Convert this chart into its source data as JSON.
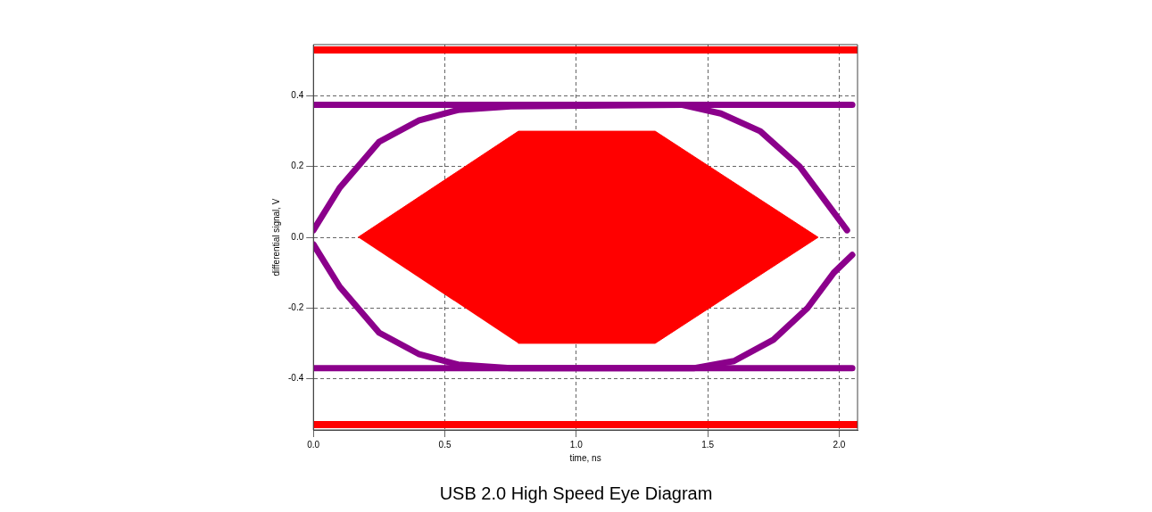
{
  "chart_data": {
    "type": "line",
    "title": "USB 2.0 High Speed Eye Diagram",
    "xlabel": "time, ns",
    "ylabel": "differential signal, V",
    "xlim": [
      0,
      2.07
    ],
    "ylim": [
      -0.545,
      0.545
    ],
    "xticks": [
      {
        "value": 0,
        "label": "0.0"
      },
      {
        "value": 0.5,
        "label": "0.5"
      },
      {
        "value": 1,
        "label": "1.0"
      },
      {
        "value": 1.5,
        "label": "1.5"
      },
      {
        "value": 2,
        "label": "2.0"
      }
    ],
    "yticks": [
      {
        "value": -0.4,
        "label": "-0.4"
      },
      {
        "value": -0.2,
        "label": "-0.2"
      },
      {
        "value": 0,
        "label": "0.0"
      },
      {
        "value": 0.2,
        "label": "0.2"
      },
      {
        "value": 0.4,
        "label": "0.4"
      }
    ],
    "grid": true,
    "line_style": "solid",
    "marker": "none",
    "legend": false,
    "bands": [
      {
        "axis": "y",
        "from": 0.52,
        "to": 0.54,
        "color": "#ff0000"
      },
      {
        "axis": "y",
        "from": -0.54,
        "to": -0.52,
        "color": "#ff0000"
      }
    ],
    "series": [
      {
        "type": "area",
        "color": "#ff0000",
        "x": [
          0.17,
          0.78,
          1.3,
          1.92,
          1.3,
          0.78
        ],
        "values": [
          0,
          0.3,
          0.3,
          0,
          -0.3,
          -0.3
        ]
      },
      {
        "color": "#8b008b",
        "x": [
          0,
          2.05
        ],
        "values": [
          0.375,
          0.375
        ]
      },
      {
        "color": "#8b008b",
        "x": [
          0,
          2.05
        ],
        "values": [
          -0.37,
          -0.37
        ]
      },
      {
        "color": "#8b008b",
        "x": [
          0,
          0.1,
          0.25,
          0.4,
          0.55,
          0.75,
          1.4,
          1.55,
          1.7,
          1.85,
          1.95,
          2.03
        ],
        "values": [
          0.02,
          0.14,
          0.27,
          0.33,
          0.36,
          0.37,
          0.375,
          0.35,
          0.3,
          0.2,
          0.1,
          0.02
        ]
      },
      {
        "color": "#8b008b",
        "x": [
          0,
          0.1,
          0.25,
          0.4,
          0.55,
          0.75,
          1.45,
          1.6,
          1.75,
          1.88,
          1.98,
          2.05
        ],
        "values": [
          -0.02,
          -0.14,
          -0.27,
          -0.33,
          -0.36,
          -0.37,
          -0.37,
          -0.35,
          -0.29,
          -0.2,
          -0.1,
          -0.05
        ]
      }
    ]
  }
}
